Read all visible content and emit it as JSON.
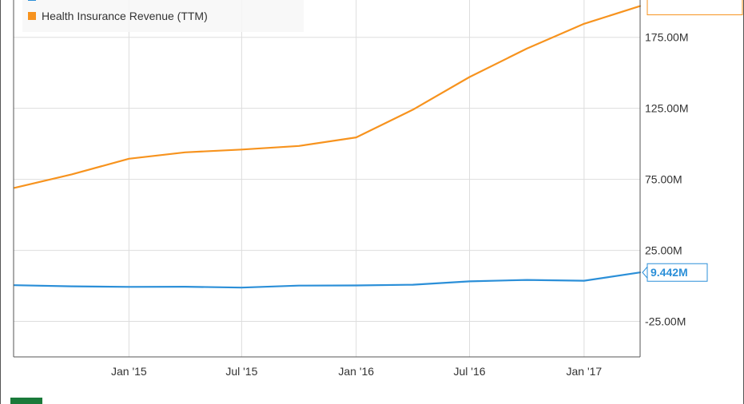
{
  "chart_data": {
    "type": "line",
    "x": [
      "2014-07-01",
      "2014-10-01",
      "2015-01-01",
      "2015-04-01",
      "2015-07-01",
      "2015-10-01",
      "2016-01-01",
      "2016-04-01",
      "2016-07-01",
      "2016-10-01",
      "2017-01-01",
      "2017-04-01"
    ],
    "series": [
      {
        "name": "Health Insurance Revenue (TTM)",
        "color": "#f7931e",
        "values": [
          69,
          78.5,
          89.5,
          94,
          96,
          98.5,
          104.5,
          124,
          147,
          167,
          184.5,
          197
        ],
        "last_label": ""
      },
      {
        "name": "",
        "color": "#2b8fd8",
        "values": [
          0.5,
          -0.3,
          -0.7,
          -0.6,
          -1.2,
          0.2,
          0.3,
          0.8,
          3.2,
          4.2,
          3.6,
          9.442
        ],
        "last_label": "9.442M"
      }
    ],
    "x_ticks": [
      {
        "x": "2015-01-01",
        "label": "Jan '15"
      },
      {
        "x": "2015-07-01",
        "label": "Jul '15"
      },
      {
        "x": "2016-01-01",
        "label": "Jan '16"
      },
      {
        "x": "2016-07-01",
        "label": "Jul '16"
      },
      {
        "x": "2017-01-01",
        "label": "Jan '17"
      }
    ],
    "y_ticks": [
      {
        "value": 175,
        "label": "175.00M"
      },
      {
        "value": 125,
        "label": "125.00M"
      },
      {
        "value": 75,
        "label": "75.00M"
      },
      {
        "value": 25,
        "label": "25.00M"
      },
      {
        "value": -25,
        "label": "-25.00M"
      }
    ],
    "ylim": [
      -50,
      208
    ],
    "grid": true,
    "legend_position": "top-left"
  }
}
